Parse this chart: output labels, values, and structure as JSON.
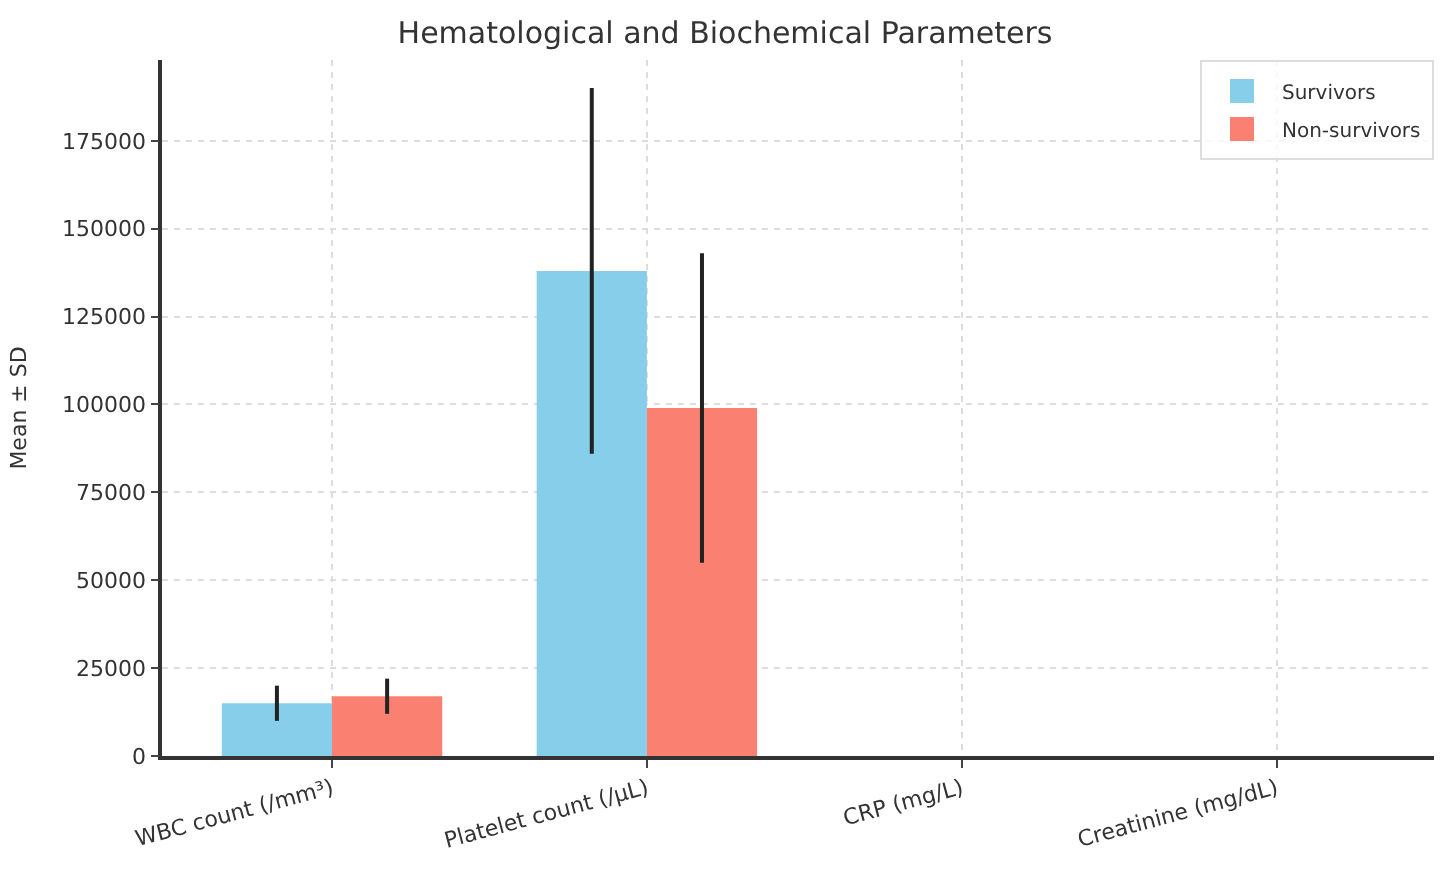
{
  "chart_data": {
    "type": "bar",
    "title": "Hematological and Biochemical Parameters",
    "ylabel": "Mean ± SD",
    "categories": [
      "WBC count (/mm³)",
      "Platelet count (/µL)",
      "CRP (mg/L)",
      "Creatinine (mg/dL)"
    ],
    "series": [
      {
        "name": "Survivors",
        "color": "#87ceeb",
        "values": [
          15000,
          138000,
          0,
          0
        ],
        "errors": [
          5000,
          52000,
          null,
          null
        ]
      },
      {
        "name": "Non-survivors",
        "color": "#fa8072",
        "values": [
          17000,
          99000,
          0,
          0
        ],
        "errors": [
          5000,
          44000,
          null,
          null
        ]
      }
    ],
    "ylim": [
      0,
      198000
    ],
    "yticks": [
      0,
      25000,
      50000,
      75000,
      100000,
      125000,
      150000,
      175000
    ],
    "grid": true,
    "legend": "top right"
  }
}
